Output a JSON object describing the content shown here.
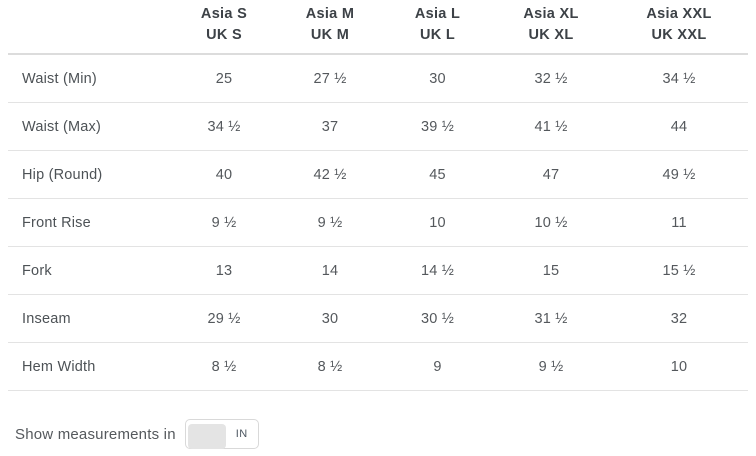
{
  "table": {
    "columns": [
      {
        "asia": "Asia S",
        "uk": "UK S"
      },
      {
        "asia": "Asia M",
        "uk": "UK M"
      },
      {
        "asia": "Asia L",
        "uk": "UK L"
      },
      {
        "asia": "Asia XL",
        "uk": "UK XL"
      },
      {
        "asia": "Asia XXL",
        "uk": "UK XXL"
      }
    ],
    "rows": [
      {
        "label": "Waist (Min)",
        "values": [
          "25",
          "27 ½",
          "30",
          "32 ½",
          "34 ½"
        ]
      },
      {
        "label": "Waist (Max)",
        "values": [
          "34 ½",
          "37",
          "39 ½",
          "41 ½",
          "44"
        ]
      },
      {
        "label": "Hip (Round)",
        "values": [
          "40",
          "42 ½",
          "45",
          "47",
          "49 ½"
        ]
      },
      {
        "label": "Front Rise",
        "values": [
          "9 ½",
          "9 ½",
          "10",
          "10 ½",
          "11"
        ]
      },
      {
        "label": "Fork",
        "values": [
          "13",
          "14",
          "14 ½",
          "15",
          "15 ½"
        ]
      },
      {
        "label": "Inseam",
        "values": [
          "29 ½",
          "30",
          "30 ½",
          "31 ½",
          "32"
        ]
      },
      {
        "label": "Hem Width",
        "values": [
          "8 ½",
          "8 ½",
          "9",
          "9 ½",
          "10"
        ]
      }
    ]
  },
  "footer": {
    "toggle_label": "Show measurements in",
    "toggle_value": "IN"
  },
  "colors": {
    "header_text": "#3d4247",
    "body_text": "#54585c",
    "header_divider": "#dcdcdc",
    "row_divider": "#e3e3e3",
    "toggle_border": "#d9d9d9",
    "toggle_knob": "#e4e4e4"
  }
}
